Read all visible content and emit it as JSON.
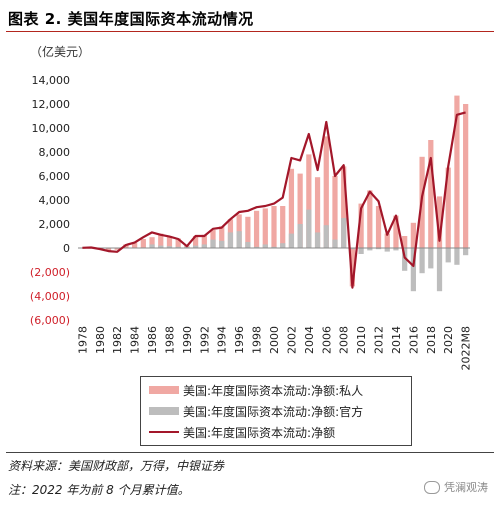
{
  "title": "图表 2. 美国年度国际资本流动情况",
  "unit": "（亿美元）",
  "source": "资料来源：美国财政部，万得，中银证券",
  "note": "注：2022 年为前 8 个月累计值。",
  "watermark": "凭澜观涛",
  "watermark_icon": "wechat-icon",
  "colors": {
    "private": "#f0a8a3",
    "official": "#bdbdbd",
    "net": "#a3172a",
    "accent": "#b3261e",
    "tick_negative": "#d0202a"
  },
  "chart_data": {
    "type": "bar",
    "ylim": [
      -6000,
      14000
    ],
    "yticks": [
      14000,
      12000,
      10000,
      8000,
      6000,
      4000,
      2000,
      0,
      -2000,
      -4000,
      -6000
    ],
    "ytick_labels": [
      "14,000",
      "12,000",
      "10,000",
      "8,000",
      "6,000",
      "4,000",
      "2,000",
      "0",
      "(2,000)",
      "(4,000)",
      "(6,000)"
    ],
    "categories": [
      "1978",
      "1979",
      "1980",
      "1981",
      "1982",
      "1983",
      "1984",
      "1985",
      "1986",
      "1987",
      "1988",
      "1989",
      "1990",
      "1991",
      "1992",
      "1993",
      "1994",
      "1995",
      "1996",
      "1997",
      "1998",
      "1999",
      "2000",
      "2001",
      "2002",
      "2003",
      "2004",
      "2005",
      "2006",
      "2007",
      "2008",
      "2009",
      "2010",
      "2011",
      "2012",
      "2013",
      "2014",
      "2015",
      "2016",
      "2017",
      "2018",
      "2019",
      "2020",
      "2021",
      "2022M8"
    ],
    "xtick_labels": [
      "1978",
      "",
      "1980",
      "",
      "1982",
      "",
      "1984",
      "",
      "1986",
      "",
      "1988",
      "",
      "1990",
      "",
      "1992",
      "",
      "1994",
      "",
      "1996",
      "",
      "1998",
      "",
      "2000",
      "",
      "2002",
      "",
      "2004",
      "",
      "2006",
      "",
      "2008",
      "",
      "2010",
      "",
      "2012",
      "",
      "2014",
      "",
      "2016",
      "",
      "2018",
      "",
      "2020",
      "",
      "2022M8"
    ],
    "series": [
      {
        "name": "美国:年度国际资本流动:净额:私人",
        "type": "bar",
        "values": [
          0,
          50,
          -100,
          -250,
          -150,
          300,
          450,
          750,
          900,
          1200,
          1000,
          800,
          200,
          1000,
          1100,
          1500,
          1800,
          2400,
          2800,
          2600,
          3100,
          3300,
          3500,
          3500,
          6600,
          6200,
          7800,
          5900,
          9300,
          6000,
          6800,
          -3200,
          3700,
          4800,
          3500,
          1200,
          2700,
          1000,
          2100,
          7600,
          9000,
          4300,
          6700,
          12700,
          12000
        ]
      },
      {
        "name": "美国:年度国际资本流动:净额:官方",
        "type": "bar",
        "values": [
          0,
          0,
          -50,
          -50,
          -50,
          0,
          0,
          50,
          300,
          200,
          150,
          100,
          100,
          200,
          300,
          700,
          600,
          1300,
          1400,
          500,
          100,
          300,
          100,
          400,
          1200,
          2000,
          3200,
          1300,
          1900,
          700,
          2500,
          -100,
          -500,
          -200,
          -100,
          -300,
          -200,
          -1900,
          -3600,
          -2100,
          -1700,
          -3600,
          -1200,
          -1400,
          -600
        ]
      },
      {
        "name": "美国:年度国际资本流动:净额",
        "type": "line",
        "values": [
          20,
          40,
          -80,
          -260,
          -320,
          250,
          450,
          900,
          1300,
          1100,
          950,
          750,
          150,
          1000,
          1000,
          1600,
          1700,
          2400,
          3000,
          3100,
          3400,
          3500,
          3700,
          4200,
          7500,
          7300,
          9500,
          6500,
          10500,
          6000,
          6900,
          -3300,
          3300,
          4700,
          3900,
          1100,
          2700,
          -800,
          -1500,
          4300,
          7500,
          600,
          6800,
          11100,
          11300
        ]
      }
    ]
  }
}
